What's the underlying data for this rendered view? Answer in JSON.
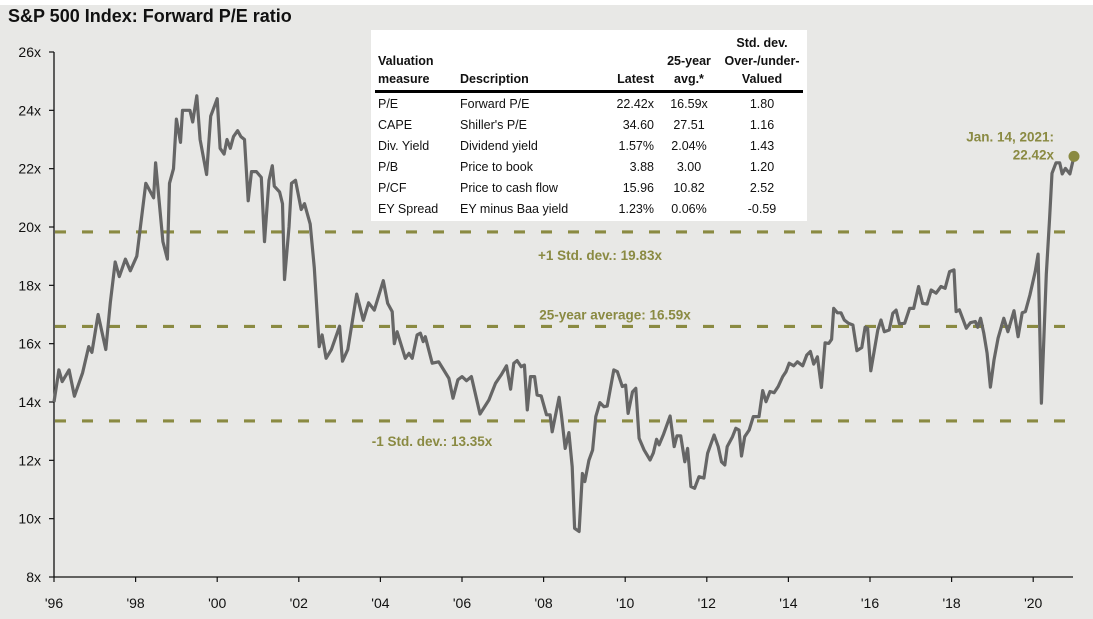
{
  "title": "S&P 500 Index: Forward P/E ratio",
  "colors": {
    "background": "#e8e8e6",
    "line": "#666666",
    "reference_lines": "#8a8a42",
    "axis": "#111111"
  },
  "chart_data": {
    "type": "line",
    "title": "S&P 500 Index: Forward P/E ratio",
    "xlabel": "",
    "ylabel": "",
    "xlim": [
      1996,
      2021
    ],
    "ylim": [
      8,
      26
    ],
    "grid": false,
    "x_tick_labels": [
      "'96",
      "'98",
      "'00",
      "'02",
      "'04",
      "'06",
      "'08",
      "'10",
      "'12",
      "'14",
      "'16",
      "'18",
      "'20"
    ],
    "x_tick_values": [
      1996,
      1998,
      2000,
      2002,
      2004,
      2006,
      2008,
      2010,
      2012,
      2014,
      2016,
      2018,
      2020
    ],
    "y_tick_labels": [
      "8x",
      "10x",
      "12x",
      "14x",
      "16x",
      "18x",
      "20x",
      "22x",
      "24x",
      "26x"
    ],
    "y_tick_values": [
      8,
      10,
      12,
      14,
      16,
      18,
      20,
      22,
      24,
      26
    ],
    "series": [
      {
        "x": [
          1996.0,
          1996.12,
          1996.2,
          1996.37,
          1996.5,
          1996.7,
          1996.85,
          1996.93,
          1997.08,
          1997.27,
          1997.38,
          1997.5,
          1997.6,
          1997.75,
          1997.87,
          1998.03,
          1998.25,
          1998.44,
          1998.49,
          1998.67,
          1998.78,
          1998.83,
          1998.93,
          1999.0,
          1999.1,
          1999.15,
          1999.33,
          1999.4,
          1999.5,
          1999.58,
          1999.74,
          1999.84,
          2000.0,
          2000.07,
          2000.17,
          2000.24,
          2000.32,
          2000.4,
          2000.5,
          2000.58,
          2000.67,
          2000.76,
          2000.84,
          2000.96,
          2001.08,
          2001.16,
          2001.27,
          2001.35,
          2001.4,
          2001.53,
          2001.6,
          2001.65,
          2001.76,
          2001.82,
          2001.92,
          2002.06,
          2002.14,
          2002.28,
          2002.38,
          2002.5,
          2002.57,
          2002.67,
          2002.8,
          2003.0,
          2003.07,
          2003.2,
          2003.42,
          2003.58,
          2003.71,
          2003.85,
          2004.07,
          2004.18,
          2004.29,
          2004.34,
          2004.41,
          2004.61,
          2004.7,
          2004.78,
          2004.9,
          2004.98,
          2005.05,
          2005.1,
          2005.27,
          2005.43,
          2005.68,
          2005.78,
          2005.9,
          2006.0,
          2006.11,
          2006.23,
          2006.44,
          2006.66,
          2006.82,
          2006.96,
          2007.09,
          2007.19,
          2007.27,
          2007.35,
          2007.45,
          2007.53,
          2007.6,
          2007.68,
          2007.78,
          2007.84,
          2007.94,
          2008.07,
          2008.16,
          2008.21,
          2008.38,
          2008.44,
          2008.53,
          2008.62,
          2008.7,
          2008.76,
          2008.87,
          2008.95,
          2009.01,
          2009.11,
          2009.2,
          2009.28,
          2009.38,
          2009.48,
          2009.56,
          2009.72,
          2009.81,
          2009.93,
          2010.01,
          2010.07,
          2010.18,
          2010.26,
          2010.34,
          2010.46,
          2010.61,
          2010.69,
          2010.77,
          2010.83,
          2010.94,
          2011.1,
          2011.2,
          2011.27,
          2011.36,
          2011.46,
          2011.53,
          2011.61,
          2011.7,
          2011.81,
          2011.93,
          2012.02,
          2012.18,
          2012.28,
          2012.36,
          2012.44,
          2012.5,
          2012.63,
          2012.71,
          2012.79,
          2012.85,
          2012.93,
          2013.04,
          2013.14,
          2013.28,
          2013.37,
          2013.45,
          2013.55,
          2013.65,
          2013.75,
          2013.86,
          2013.94,
          2014.02,
          2014.13,
          2014.22,
          2014.35,
          2014.45,
          2014.54,
          2014.62,
          2014.71,
          2014.81,
          2014.9,
          2014.99,
          2015.06,
          2015.11,
          2015.2,
          2015.29,
          2015.37,
          2015.47,
          2015.58,
          2015.68,
          2015.8,
          2015.88,
          2015.94,
          2016.02,
          2016.19,
          2016.27,
          2016.35,
          2016.47,
          2016.56,
          2016.64,
          2016.72,
          2016.85,
          2016.97,
          2017.07,
          2017.19,
          2017.29,
          2017.4,
          2017.5,
          2017.62,
          2017.74,
          2017.84,
          2017.95,
          2018.06,
          2018.11,
          2018.19,
          2018.36,
          2018.46,
          2018.58,
          2018.64,
          2018.71,
          2018.79,
          2018.87,
          2018.95,
          2019.04,
          2019.14,
          2019.28,
          2019.38,
          2019.53,
          2019.63,
          2019.73,
          2019.81,
          2019.92,
          2020.05,
          2020.12,
          2020.2,
          2020.32,
          2020.4,
          2020.46,
          2020.56,
          2020.65,
          2020.71,
          2020.79,
          2020.9,
          2021.0
        ],
        "y": [
          14.0,
          15.1,
          14.7,
          15.1,
          14.2,
          15.0,
          15.9,
          15.7,
          17.0,
          15.8,
          17.4,
          18.8,
          18.3,
          18.9,
          18.5,
          19.0,
          21.5,
          21.0,
          22.2,
          19.5,
          18.9,
          21.5,
          22.0,
          23.7,
          22.9,
          24.0,
          24.0,
          23.6,
          24.5,
          23.0,
          21.8,
          23.8,
          24.4,
          22.7,
          22.5,
          23.0,
          22.7,
          23.1,
          23.3,
          23.1,
          23.0,
          20.9,
          21.9,
          21.9,
          21.7,
          19.5,
          21.6,
          22.1,
          21.4,
          21.2,
          20.8,
          18.2,
          20.0,
          21.5,
          21.6,
          20.6,
          20.8,
          20.1,
          18.6,
          15.9,
          16.3,
          15.5,
          15.8,
          16.6,
          15.4,
          15.8,
          17.7,
          16.8,
          17.4,
          17.15,
          18.16,
          17.38,
          17.1,
          16.0,
          16.41,
          15.5,
          15.67,
          15.5,
          16.3,
          16.36,
          16.07,
          16.24,
          15.33,
          15.38,
          14.81,
          14.13,
          14.76,
          14.87,
          14.73,
          14.87,
          13.59,
          14.07,
          14.64,
          14.93,
          15.24,
          14.44,
          15.33,
          15.42,
          15.21,
          15.27,
          13.73,
          14.87,
          14.87,
          14.24,
          14.21,
          13.56,
          13.56,
          12.98,
          14.16,
          13.5,
          12.41,
          12.95,
          11.78,
          9.67,
          9.56,
          11.55,
          11.27,
          12.0,
          12.35,
          13.5,
          13.98,
          13.84,
          13.86,
          15.1,
          15.04,
          14.53,
          14.58,
          13.61,
          14.35,
          14.47,
          12.76,
          12.36,
          12.01,
          12.26,
          12.72,
          12.53,
          12.9,
          13.52,
          12.47,
          12.84,
          12.84,
          11.95,
          12.41,
          11.1,
          11.04,
          11.44,
          11.39,
          12.24,
          12.87,
          12.47,
          11.95,
          11.84,
          12.47,
          12.81,
          13.1,
          13.04,
          12.15,
          12.81,
          13.04,
          13.5,
          13.5,
          14.39,
          14.01,
          14.36,
          14.32,
          14.53,
          14.87,
          15.04,
          15.33,
          15.24,
          15.38,
          15.24,
          15.61,
          15.73,
          15.3,
          15.55,
          14.5,
          16.03,
          16.01,
          16.15,
          17.21,
          17.06,
          17.06,
          16.81,
          16.7,
          16.64,
          15.76,
          15.87,
          16.56,
          16.53,
          15.07,
          16.47,
          16.81,
          16.41,
          16.47,
          17.04,
          17.15,
          16.68,
          16.7,
          17.21,
          17.21,
          17.96,
          17.38,
          17.36,
          17.84,
          17.73,
          17.96,
          17.9,
          18.47,
          18.53,
          17.1,
          17.16,
          16.53,
          16.72,
          16.76,
          16.56,
          16.87,
          16.36,
          15.67,
          14.51,
          15.44,
          16.19,
          16.87,
          16.41,
          17.13,
          16.24,
          17.06,
          17.1,
          17.67,
          18.47,
          19.07,
          13.96,
          18.38,
          20.24,
          21.84,
          22.2,
          22.2,
          21.82,
          22.01,
          21.82,
          22.42
        ]
      }
    ],
    "reference_lines": [
      {
        "value": 19.83,
        "label": "+1 Std. dev.: 19.83x"
      },
      {
        "value": 16.59,
        "label": "25-year average: 16.59x"
      },
      {
        "value": 13.35,
        "label": "-1 Std. dev.: 13.35x"
      }
    ],
    "annotation": {
      "line1": "Jan. 14, 2021:",
      "line2": "22.42x",
      "value": 22.42
    }
  },
  "table": {
    "headers": {
      "measure": [
        "Valuation",
        "measure"
      ],
      "description": "Description",
      "latest": "Latest",
      "avg": [
        "25-year",
        "avg.*"
      ],
      "std": [
        "Std. dev.",
        "Over-/under-",
        "Valued"
      ]
    },
    "rows": [
      {
        "measure": "P/E",
        "description": "Forward P/E",
        "latest": "22.42x",
        "avg": "16.59x",
        "std": "1.80"
      },
      {
        "measure": "CAPE",
        "description": "Shiller's P/E",
        "latest": "34.60",
        "avg": "27.51",
        "std": "1.16"
      },
      {
        "measure": "Div. Yield",
        "description": "Dividend yield",
        "latest": "1.57%",
        "avg": "2.04%",
        "std": "1.43"
      },
      {
        "measure": "P/B",
        "description": "Price to book",
        "latest": "3.88",
        "avg": "3.00",
        "std": "1.20"
      },
      {
        "measure": "P/CF",
        "description": "Price to cash flow",
        "latest": "15.96",
        "avg": "10.82",
        "std": "2.52"
      },
      {
        "measure": "EY Spread",
        "description": "EY minus Baa yield",
        "latest": "1.23%",
        "avg": "0.06%",
        "std": "-0.59"
      }
    ]
  }
}
